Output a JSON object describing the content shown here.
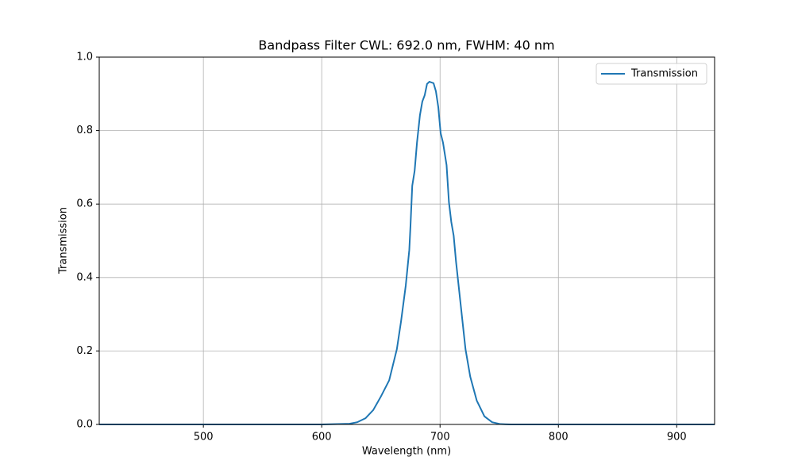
{
  "chart_data": {
    "type": "line",
    "title": "Bandpass Filter CWL: 692.0 nm, FWHM: 40 nm",
    "x_label": "Wavelength (nm)",
    "y_label": "Transmission",
    "x": [
      412,
      600,
      623.5,
      630,
      637,
      643.5,
      650,
      657,
      663.5,
      667,
      671,
      674,
      675,
      676.5,
      678.5,
      680.5,
      683,
      685,
      687,
      689,
      691,
      694.5,
      696.5,
      698.5,
      700.5,
      702.5,
      705.5,
      707.5,
      709.5,
      711.5,
      713.5,
      717.5,
      721.5,
      725.5,
      731,
      737.5,
      744,
      751,
      760,
      932
    ],
    "series": [
      {
        "name": "Transmission",
        "color": "#1f77b4",
        "values": [
          0,
          0,
          0.002,
          0.006,
          0.017,
          0.039,
          0.076,
          0.12,
          0.205,
          0.28,
          0.378,
          0.475,
          0.54,
          0.65,
          0.69,
          0.767,
          0.842,
          0.879,
          0.896,
          0.927,
          0.933,
          0.929,
          0.907,
          0.864,
          0.793,
          0.767,
          0.706,
          0.605,
          0.551,
          0.514,
          0.443,
          0.324,
          0.205,
          0.13,
          0.065,
          0.022,
          0.006,
          0.001,
          0,
          0
        ]
      }
    ],
    "xlim": [
      412,
      932
    ],
    "ylim": [
      0,
      1
    ],
    "xticks": [
      500,
      600,
      700,
      800,
      900
    ],
    "yticks": [
      {
        "value": 0,
        "label": "0.0"
      },
      {
        "value": 0.2,
        "label": "0.2"
      },
      {
        "value": 0.4,
        "label": "0.4"
      },
      {
        "value": 0.6,
        "label": "0.6"
      },
      {
        "value": 0.8,
        "label": "0.8"
      },
      {
        "value": 1,
        "label": "1.0"
      }
    ],
    "grid": true,
    "legend": "upper-right"
  }
}
